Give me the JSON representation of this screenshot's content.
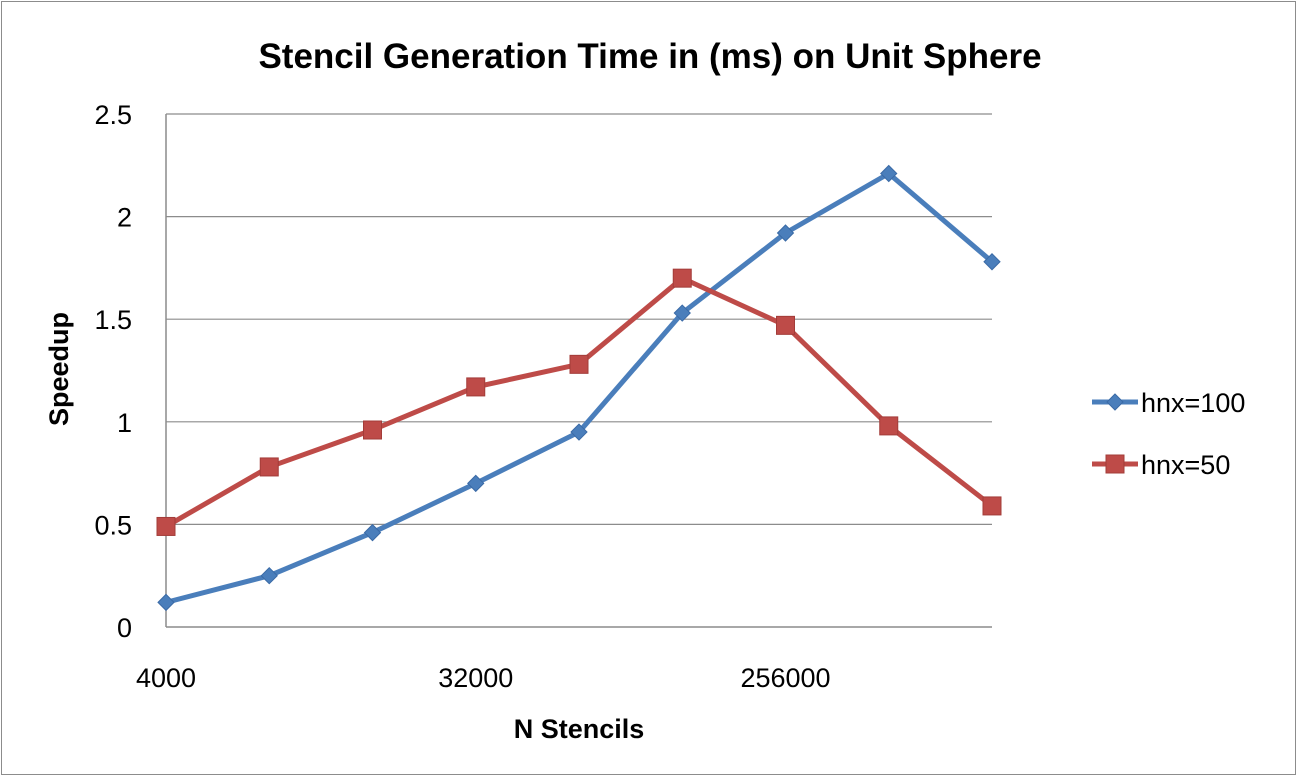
{
  "chart_data": {
    "type": "line",
    "title": "Stencil Generation Time in (ms) on Unit Sphere",
    "xlabel": "N Stencils",
    "ylabel": "Speedup",
    "x": [
      4000,
      8000,
      16000,
      32000,
      64000,
      128000,
      256000,
      512000,
      1024000
    ],
    "x_tick_labels": [
      "4000",
      "32000",
      "256000"
    ],
    "y_tick_labels": [
      "0",
      "0.5",
      "1",
      "1.5",
      "2",
      "2.5"
    ],
    "ylim": [
      0,
      2.5
    ],
    "grid": true,
    "legend_position": "right",
    "series": [
      {
        "name": "hnx=100",
        "color": "#4a7ebb",
        "marker": "diamond",
        "values": [
          0.12,
          0.25,
          0.46,
          0.7,
          0.95,
          1.53,
          1.92,
          2.21,
          1.78
        ]
      },
      {
        "name": "hnx=50",
        "color": "#be4b48",
        "marker": "square",
        "values": [
          0.49,
          0.78,
          0.96,
          1.17,
          1.28,
          1.7,
          1.47,
          0.98,
          0.59
        ]
      }
    ]
  }
}
